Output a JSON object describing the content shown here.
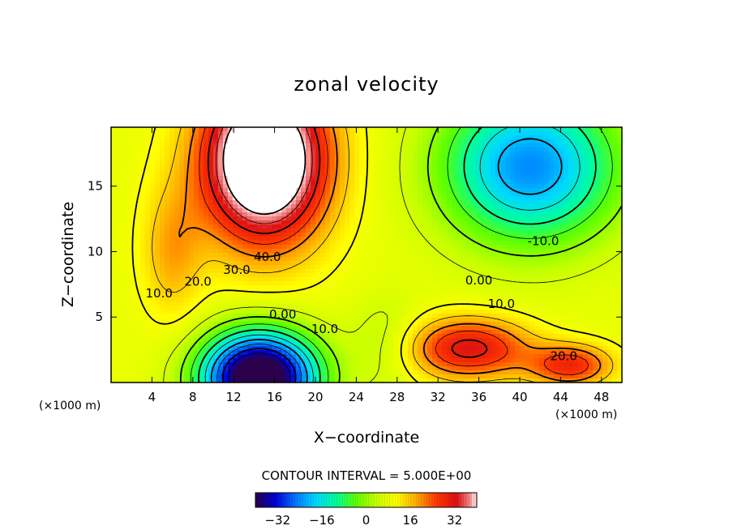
{
  "chart_data": {
    "type": "heatmap",
    "title": "zonal velocity",
    "xlabel": "X−coordinate",
    "ylabel": "Z−coordinate",
    "x_unit": "(×1000 m)",
    "z_unit": "(×1000 m)",
    "xlim": [
      0,
      50
    ],
    "ylim": [
      0,
      19.5
    ],
    "x_ticks": [
      4,
      8,
      12,
      16,
      20,
      24,
      28,
      32,
      36,
      40,
      44,
      48
    ],
    "y_ticks": [
      5,
      10,
      15
    ],
    "contour_interval_label": "CONTOUR INTERVAL = 5.000E+00",
    "contour_interval": 5,
    "contour_labels": [
      {
        "text": "40.0",
        "x": 15.3,
        "z": 9.6
      },
      {
        "text": "30.0",
        "x": 12.3,
        "z": 8.6
      },
      {
        "text": "20.0",
        "x": 8.5,
        "z": 7.7
      },
      {
        "text": "10.0",
        "x": 4.7,
        "z": 6.8
      },
      {
        "text": "0.00",
        "x": 16.8,
        "z": 5.2
      },
      {
        "text": "-10.0",
        "x": 20.7,
        "z": 4.1
      },
      {
        "text": "0.00",
        "x": 36.0,
        "z": 7.8
      },
      {
        "text": "10.0",
        "x": 38.2,
        "z": 6.0
      },
      {
        "text": "-10.0",
        "x": 42.3,
        "z": 10.8
      },
      {
        "text": "20.0",
        "x": 44.3,
        "z": 2.0
      }
    ],
    "features": [
      {
        "kind": "max",
        "x": 15,
        "z": 17,
        "value": 45
      },
      {
        "kind": "min",
        "x": 14.5,
        "z": 0.5,
        "value": -38
      },
      {
        "kind": "min",
        "x": 42,
        "z": 17,
        "value": -17
      },
      {
        "kind": "max",
        "x": 35,
        "z": 2.5,
        "value": 27
      },
      {
        "kind": "max",
        "x": 45,
        "z": 1.2,
        "value": 27
      }
    ],
    "colorbar": {
      "min": -40,
      "max": 40,
      "ticks": [
        -32,
        -16,
        0,
        16,
        32
      ],
      "colors": [
        "#2a004a",
        "#0000d8",
        "#0078ff",
        "#00d8ff",
        "#00ff9a",
        "#5cff00",
        "#c8ff00",
        "#ffff00",
        "#ffaa00",
        "#ff3800",
        "#dc1010",
        "#ffc8c8"
      ]
    }
  }
}
